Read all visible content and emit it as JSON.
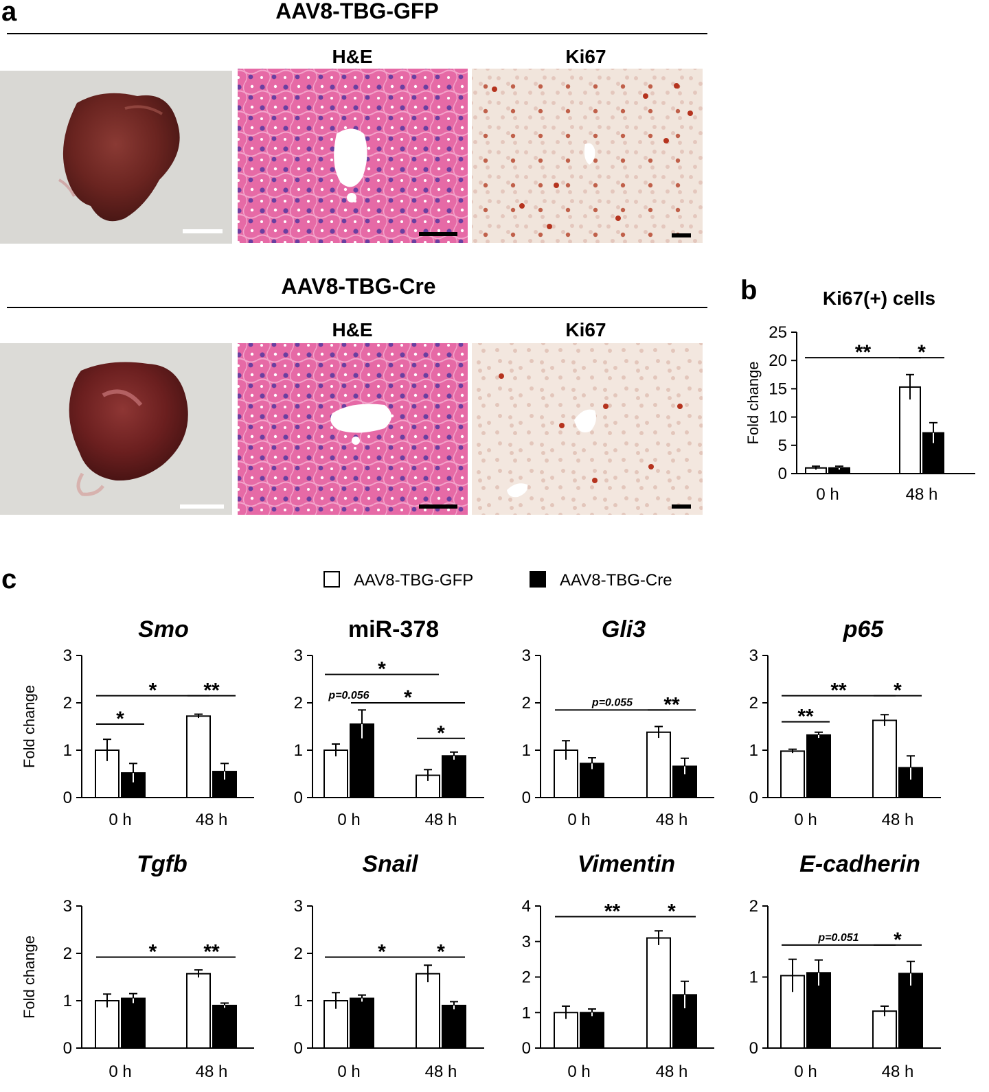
{
  "figure": {
    "panel_a": {
      "letter": "a",
      "rows": [
        {
          "group": "AAV8-TBG-GFP",
          "he_label": "H&E",
          "ki67_label": "Ki67"
        },
        {
          "group": "AAV8-TBG-Cre",
          "he_label": "H&E",
          "ki67_label": "Ki67"
        }
      ]
    },
    "panel_b": {
      "letter": "b"
    },
    "panel_c": {
      "letter": "c",
      "legend": [
        {
          "label": "AAV8-TBG-GFP",
          "color": "#ffffff"
        },
        {
          "label": "AAV8-TBG-Cre",
          "color": "#000000"
        }
      ]
    }
  },
  "chart_data": [
    {
      "id": "ki67",
      "type": "bar",
      "title": "Ki67(+) cells",
      "title_italic": false,
      "ylabel": "Fold change",
      "ylim": [
        0,
        25
      ],
      "yticks": [
        0,
        5,
        10,
        15,
        20,
        25
      ],
      "categories": [
        "0 h",
        "48 h"
      ],
      "series": [
        {
          "name": "AAV8-TBG-GFP",
          "color": "#ffffff",
          "values": [
            1.0,
            15.3
          ],
          "errors": [
            0.3,
            2.2
          ]
        },
        {
          "name": "AAV8-TBG-Cre",
          "color": "#000000",
          "values": [
            1.0,
            7.2
          ],
          "errors": [
            0.3,
            1.8
          ]
        }
      ],
      "annotations": [
        {
          "label": "**",
          "from": [
            0,
            0
          ],
          "to": [
            1,
            0
          ],
          "level": 20.5
        },
        {
          "label": "*",
          "from": [
            1,
            0
          ],
          "to": [
            1,
            1
          ],
          "level": 20.5
        }
      ]
    },
    {
      "id": "smo",
      "type": "bar",
      "title": "Smo",
      "title_italic": true,
      "ylabel": "Fold change",
      "ylim": [
        0,
        3
      ],
      "yticks": [
        0,
        1,
        2,
        3
      ],
      "categories": [
        "0 h",
        "48 h"
      ],
      "series": [
        {
          "name": "AAV8-TBG-GFP",
          "color": "#ffffff",
          "values": [
            1.0,
            1.72
          ],
          "errors": [
            0.23,
            0.04
          ]
        },
        {
          "name": "AAV8-TBG-Cre",
          "color": "#000000",
          "values": [
            0.52,
            0.55
          ],
          "errors": [
            0.2,
            0.17
          ]
        }
      ],
      "annotations": [
        {
          "label": "*",
          "from": [
            0,
            0
          ],
          "to": [
            0,
            1
          ],
          "level": 1.55
        },
        {
          "label": "*",
          "from": [
            0,
            0
          ],
          "to": [
            1,
            0
          ],
          "level": 2.15
        },
        {
          "label": "**",
          "from": [
            1,
            0
          ],
          "to": [
            1,
            1
          ],
          "level": 2.15
        }
      ]
    },
    {
      "id": "mir378",
      "type": "bar",
      "title": "miR-378",
      "title_italic": false,
      "ylabel": "",
      "ylim": [
        0,
        3
      ],
      "yticks": [
        0,
        1,
        2,
        3
      ],
      "categories": [
        "0 h",
        "48 h"
      ],
      "series": [
        {
          "name": "AAV8-TBG-GFP",
          "color": "#ffffff",
          "values": [
            1.0,
            0.47
          ],
          "errors": [
            0.13,
            0.12
          ]
        },
        {
          "name": "AAV8-TBG-Cre",
          "color": "#000000",
          "values": [
            1.55,
            0.88
          ],
          "errors": [
            0.3,
            0.08
          ]
        }
      ],
      "annotations": [
        {
          "label": "*",
          "from": [
            0,
            0
          ],
          "to": [
            1,
            0
          ],
          "level": 2.6
        },
        {
          "label": "p=0.056",
          "from": [
            0,
            0
          ],
          "to": [
            0,
            1
          ],
          "level": 2.0,
          "italic_small": true,
          "no_line": true
        },
        {
          "label": "*",
          "from": [
            0,
            1
          ],
          "to": [
            1,
            1
          ],
          "level": 2.0
        },
        {
          "label": "*",
          "from": [
            1,
            0
          ],
          "to": [
            1,
            1
          ],
          "level": 1.25
        }
      ]
    },
    {
      "id": "gli3",
      "type": "bar",
      "title": "Gli3",
      "title_italic": true,
      "ylabel": "",
      "ylim": [
        0,
        3
      ],
      "yticks": [
        0,
        1,
        2,
        3
      ],
      "categories": [
        "0 h",
        "48 h"
      ],
      "series": [
        {
          "name": "AAV8-TBG-GFP",
          "color": "#ffffff",
          "values": [
            1.0,
            1.38
          ],
          "errors": [
            0.2,
            0.12
          ]
        },
        {
          "name": "AAV8-TBG-Cre",
          "color": "#000000",
          "values": [
            0.72,
            0.66
          ],
          "errors": [
            0.12,
            0.17
          ]
        }
      ],
      "annotations": [
        {
          "label": "p=0.055",
          "from": [
            0,
            0
          ],
          "to": [
            1,
            0
          ],
          "level": 1.85,
          "italic_small": true
        },
        {
          "label": "**",
          "from": [
            1,
            0
          ],
          "to": [
            1,
            1
          ],
          "level": 1.85
        }
      ]
    },
    {
      "id": "p65",
      "type": "bar",
      "title": "p65",
      "title_italic": true,
      "ylabel": "",
      "ylim": [
        0,
        3
      ],
      "yticks": [
        0,
        1,
        2,
        3
      ],
      "categories": [
        "0 h",
        "48 h"
      ],
      "series": [
        {
          "name": "AAV8-TBG-GFP",
          "color": "#ffffff",
          "values": [
            0.98,
            1.63
          ],
          "errors": [
            0.04,
            0.12
          ]
        },
        {
          "name": "AAV8-TBG-Cre",
          "color": "#000000",
          "values": [
            1.32,
            0.63
          ],
          "errors": [
            0.06,
            0.25
          ]
        }
      ],
      "annotations": [
        {
          "label": "**",
          "from": [
            0,
            0
          ],
          "to": [
            0,
            1
          ],
          "level": 1.6
        },
        {
          "label": "**",
          "from": [
            0,
            0
          ],
          "to": [
            1,
            0
          ],
          "level": 2.15
        },
        {
          "label": "*",
          "from": [
            1,
            0
          ],
          "to": [
            1,
            1
          ],
          "level": 2.15
        }
      ]
    },
    {
      "id": "tgfb",
      "type": "bar",
      "title": "Tgfb",
      "title_italic": true,
      "ylabel": "Fold change",
      "ylim": [
        0,
        3
      ],
      "yticks": [
        0,
        1,
        2,
        3
      ],
      "categories": [
        "0 h",
        "48 h"
      ],
      "series": [
        {
          "name": "AAV8-TBG-GFP",
          "color": "#ffffff",
          "values": [
            1.0,
            1.57
          ],
          "errors": [
            0.14,
            0.08
          ]
        },
        {
          "name": "AAV8-TBG-Cre",
          "color": "#000000",
          "values": [
            1.05,
            0.9
          ],
          "errors": [
            0.1,
            0.05
          ]
        }
      ],
      "annotations": [
        {
          "label": "*",
          "from": [
            0,
            0
          ],
          "to": [
            1,
            0
          ],
          "level": 1.92
        },
        {
          "label": "**",
          "from": [
            1,
            0
          ],
          "to": [
            1,
            1
          ],
          "level": 1.92
        }
      ]
    },
    {
      "id": "snail",
      "type": "bar",
      "title": "Snail",
      "title_italic": true,
      "ylabel": "",
      "ylim": [
        0,
        3
      ],
      "yticks": [
        0,
        1,
        2,
        3
      ],
      "categories": [
        "0 h",
        "48 h"
      ],
      "series": [
        {
          "name": "AAV8-TBG-GFP",
          "color": "#ffffff",
          "values": [
            1.0,
            1.57
          ],
          "errors": [
            0.17,
            0.18
          ]
        },
        {
          "name": "AAV8-TBG-Cre",
          "color": "#000000",
          "values": [
            1.05,
            0.9
          ],
          "errors": [
            0.07,
            0.08
          ]
        }
      ],
      "annotations": [
        {
          "label": "*",
          "from": [
            0,
            0
          ],
          "to": [
            1,
            0
          ],
          "level": 1.92
        },
        {
          "label": "*",
          "from": [
            1,
            0
          ],
          "to": [
            1,
            1
          ],
          "level": 1.92
        }
      ]
    },
    {
      "id": "vimentin",
      "type": "bar",
      "title": "Vimentin",
      "title_italic": true,
      "ylabel": "",
      "ylim": [
        0,
        4
      ],
      "yticks": [
        0,
        1,
        2,
        3,
        4
      ],
      "categories": [
        "0 h",
        "48 h"
      ],
      "series": [
        {
          "name": "AAV8-TBG-GFP",
          "color": "#ffffff",
          "values": [
            1.0,
            3.1
          ],
          "errors": [
            0.18,
            0.2
          ]
        },
        {
          "name": "AAV8-TBG-Cre",
          "color": "#000000",
          "values": [
            1.0,
            1.5
          ],
          "errors": [
            0.1,
            0.38
          ]
        }
      ],
      "annotations": [
        {
          "label": "**",
          "from": [
            0,
            0
          ],
          "to": [
            1,
            0
          ],
          "level": 3.7
        },
        {
          "label": "*",
          "from": [
            1,
            0
          ],
          "to": [
            1,
            1
          ],
          "level": 3.7
        }
      ]
    },
    {
      "id": "ecadherin",
      "type": "bar",
      "title": "E-cadherin",
      "title_italic": true,
      "ylabel": "",
      "ylim": [
        0,
        2
      ],
      "yticks": [
        0,
        1,
        2
      ],
      "categories": [
        "0 h",
        "48 h"
      ],
      "series": [
        {
          "name": "AAV8-TBG-GFP",
          "color": "#ffffff",
          "values": [
            1.02,
            0.52
          ],
          "errors": [
            0.23,
            0.07
          ]
        },
        {
          "name": "AAV8-TBG-Cre",
          "color": "#000000",
          "values": [
            1.06,
            1.05
          ],
          "errors": [
            0.18,
            0.17
          ]
        }
      ],
      "annotations": [
        {
          "label": "p=0.051",
          "from": [
            0,
            0
          ],
          "to": [
            1,
            0
          ],
          "level": 1.45,
          "italic_small": true
        },
        {
          "label": "*",
          "from": [
            1,
            0
          ],
          "to": [
            1,
            1
          ],
          "level": 1.45
        }
      ]
    }
  ]
}
